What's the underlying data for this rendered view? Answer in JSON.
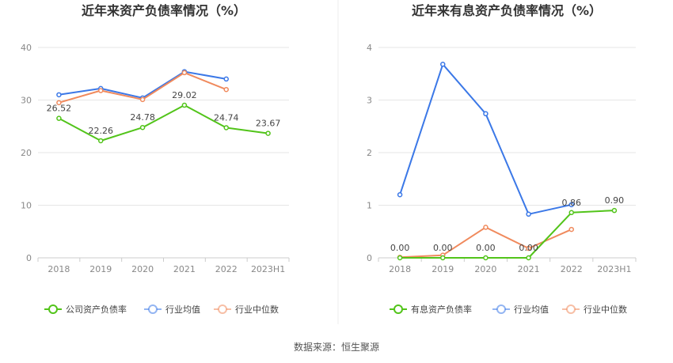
{
  "source_label": "数据来源：恒生聚源",
  "chart_data": [
    {
      "type": "line",
      "title": "近年来资产负债率情况（%）",
      "categories": [
        "2018",
        "2019",
        "2020",
        "2021",
        "2022",
        "2023H1"
      ],
      "ylim": [
        0,
        40
      ],
      "yticks": [
        "0",
        "10",
        "20",
        "30",
        "40"
      ],
      "grid": true,
      "legend_position": "bottom",
      "series": [
        {
          "name": "公司资产负债率",
          "color": "#52c41a",
          "values": [
            26.52,
            22.26,
            24.78,
            29.02,
            24.74,
            23.67
          ],
          "labels": [
            "26.52",
            "22.26",
            "24.78",
            "29.02",
            "24.74",
            "23.67"
          ]
        },
        {
          "name": "行业均值",
          "color": "#3b78e7",
          "values": [
            31.0,
            32.2,
            30.4,
            35.4,
            34.0,
            null
          ]
        },
        {
          "name": "行业中位数",
          "color": "#f08a5d",
          "values": [
            29.5,
            31.8,
            30.1,
            35.2,
            32.0,
            null
          ]
        }
      ]
    },
    {
      "type": "line",
      "title": "近年来有息资产负债率情况（%）",
      "categories": [
        "2018",
        "2019",
        "2020",
        "2021",
        "2022",
        "2023H1"
      ],
      "ylim": [
        0,
        4
      ],
      "yticks": [
        "0",
        "1",
        "2",
        "3",
        "4"
      ],
      "grid": true,
      "legend_position": "bottom",
      "series": [
        {
          "name": "有息资产负债率",
          "color": "#52c41a",
          "values": [
            0.0,
            0.0,
            0.0,
            0.0,
            0.86,
            0.9
          ],
          "labels": [
            "0.00",
            "0.00",
            "0.00",
            "0.00",
            "0.86",
            "0.90"
          ]
        },
        {
          "name": "行业均值",
          "color": "#3b78e7",
          "values": [
            1.2,
            3.68,
            2.74,
            0.83,
            1.01,
            null
          ]
        },
        {
          "name": "行业中位数",
          "color": "#f08a5d",
          "values": [
            0.01,
            0.05,
            0.58,
            0.18,
            0.54,
            null
          ]
        }
      ]
    }
  ]
}
